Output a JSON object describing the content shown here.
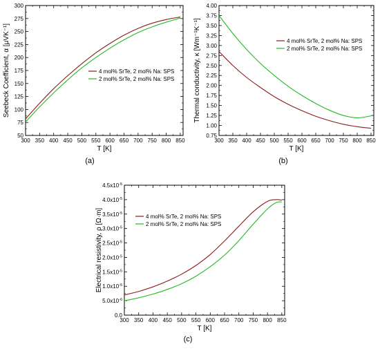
{
  "chart_data": [
    {
      "type": "line",
      "panel_label": "(a)",
      "title": "",
      "xlabel": "T [K]",
      "ylabel": "Seebeck Coefficient, α [μVK⁻¹]",
      "xlim": [
        300,
        860
      ],
      "ylim": [
        50,
        300
      ],
      "xticks": [
        "300",
        "350",
        "400",
        "450",
        "500",
        "550",
        "600",
        "650",
        "700",
        "750",
        "800",
        "850"
      ],
      "yticks": [
        "50",
        "75",
        "100",
        "125",
        "150",
        "175",
        "200",
        "225",
        "250",
        "275",
        "300"
      ],
      "legend": "center-right",
      "grid": false,
      "x": [
        300,
        350,
        400,
        450,
        500,
        550,
        600,
        650,
        700,
        750,
        800,
        850
      ],
      "series": [
        {
          "name": "4 mol% SrTe, 2 mol% Na: SPS",
          "color": "#8b1a1a",
          "values": [
            82,
            112,
            140,
            165,
            188,
            209,
            227,
            243,
            256,
            266,
            273,
            278
          ]
        },
        {
          "name": "2 mol% SrTe, 2 mol% Na: SPS",
          "color": "#22bb22",
          "values": [
            76,
            105,
            132,
            157,
            180,
            200,
            218,
            234,
            248,
            259,
            268,
            276
          ]
        }
      ]
    },
    {
      "type": "line",
      "panel_label": "(b)",
      "title": "",
      "xlabel": "T [K]",
      "ylabel": "Thermal conductivity, κ [Wm⁻¹K⁻¹]",
      "xlim": [
        300,
        860
      ],
      "ylim": [
        0.75,
        4.0
      ],
      "xticks": [
        "300",
        "350",
        "400",
        "450",
        "500",
        "550",
        "600",
        "650",
        "700",
        "750",
        "800",
        "850"
      ],
      "yticks": [
        "0.75",
        "1.00",
        "1.25",
        "1.50",
        "1.75",
        "2.00",
        "2.25",
        "2.50",
        "2.75",
        "3.00",
        "3.25",
        "3.50",
        "3.75",
        "4.00"
      ],
      "legend": "top-right",
      "grid": false,
      "x": [
        300,
        350,
        400,
        450,
        500,
        550,
        600,
        650,
        700,
        750,
        800,
        850
      ],
      "series": [
        {
          "name": "4 mol% SrTe, 2 mol% Na: SPS",
          "color": "#8b1a1a",
          "values": [
            2.85,
            2.5,
            2.2,
            1.95,
            1.72,
            1.53,
            1.37,
            1.23,
            1.12,
            1.03,
            0.97,
            0.93
          ]
        },
        {
          "name": "2 mol% SrTe, 2 mol% Na: SPS",
          "color": "#22bb22",
          "values": [
            3.75,
            3.3,
            2.9,
            2.55,
            2.25,
            1.98,
            1.75,
            1.55,
            1.38,
            1.25,
            1.19,
            1.24
          ]
        }
      ]
    },
    {
      "type": "line",
      "panel_label": "(c)",
      "title": "",
      "xlabel": "T [K]",
      "ylabel": "Electrical resistivity, ρ [Ω·m]",
      "xlim": [
        300,
        860
      ],
      "ylim": [
        0,
        4.5e-05
      ],
      "xticks": [
        "300",
        "350",
        "400",
        "450",
        "500",
        "550",
        "600",
        "650",
        "700",
        "750",
        "800",
        "850"
      ],
      "yticks": [
        {
          "m": "0.0",
          "e": ""
        },
        {
          "m": "5.0x10",
          "e": "-6"
        },
        {
          "m": "1.0x10",
          "e": "-5"
        },
        {
          "m": "1.5x10",
          "e": "-5"
        },
        {
          "m": "2.0x10",
          "e": "-5"
        },
        {
          "m": "2.5x10",
          "e": "-5"
        },
        {
          "m": "3.0x10",
          "e": "-5"
        },
        {
          "m": "3.5x10",
          "e": "-5"
        },
        {
          "m": "4.0x10",
          "e": "-5"
        },
        {
          "m": "4.5x10",
          "e": "-5"
        }
      ],
      "legend": "top-left",
      "grid": false,
      "x": [
        300,
        350,
        400,
        450,
        500,
        550,
        600,
        650,
        700,
        750,
        800,
        830,
        850
      ],
      "series": [
        {
          "name": "4 mol% SrTe, 2 mol% Na: SPS",
          "color": "#8b1a1a",
          "values": [
            7e-06,
            8.2e-06,
            9.8e-06,
            1.18e-05,
            1.42e-05,
            1.72e-05,
            2.1e-05,
            2.57e-05,
            3.08e-05,
            3.58e-05,
            3.94e-05,
            4e-05,
            3.98e-05
          ]
        },
        {
          "name": "2 mol% SrTe, 2 mol% Na: SPS",
          "color": "#22bb22",
          "values": [
            5e-06,
            6e-06,
            7.3e-06,
            8.9e-06,
            1.09e-05,
            1.35e-05,
            1.68e-05,
            2.08e-05,
            2.58e-05,
            3.15e-05,
            3.68e-05,
            3.9e-05,
            3.92e-05
          ]
        }
      ]
    }
  ]
}
